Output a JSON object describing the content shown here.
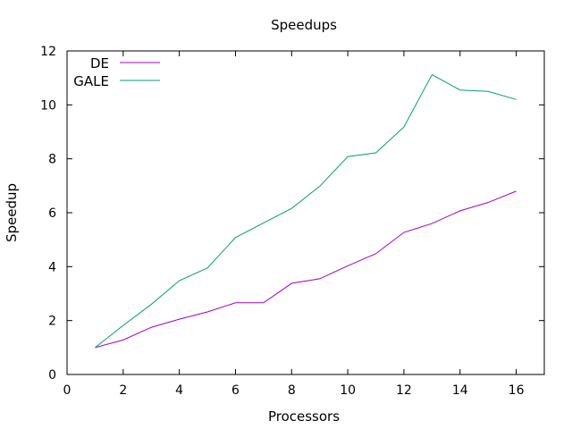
{
  "chart_data": {
    "type": "line",
    "title": "Speedups",
    "xlabel": "Processors",
    "ylabel": "Speedup",
    "xlim": [
      0,
      17
    ],
    "ylim": [
      0,
      12
    ],
    "xticks": [
      0,
      2,
      4,
      6,
      8,
      10,
      12,
      14,
      16
    ],
    "yticks": [
      0,
      2,
      4,
      6,
      8,
      10,
      12
    ],
    "grid": false,
    "legend_position": "top-left",
    "x": [
      1,
      2,
      3,
      4,
      5,
      6,
      7,
      8,
      9,
      10,
      11,
      12,
      13,
      14,
      15,
      16
    ],
    "series": [
      {
        "name": "DE",
        "color": "#a000c0",
        "values": [
          1.0,
          1.28,
          1.75,
          2.05,
          2.32,
          2.66,
          2.66,
          3.38,
          3.55,
          4.03,
          4.48,
          5.27,
          5.6,
          6.07,
          6.38,
          6.8
        ]
      },
      {
        "name": "GALE",
        "color": "#009e7a",
        "values": [
          1.0,
          1.82,
          2.6,
          3.48,
          3.95,
          5.08,
          5.62,
          6.16,
          6.98,
          8.08,
          8.22,
          9.18,
          11.12,
          10.55,
          10.5,
          10.2
        ]
      }
    ]
  }
}
